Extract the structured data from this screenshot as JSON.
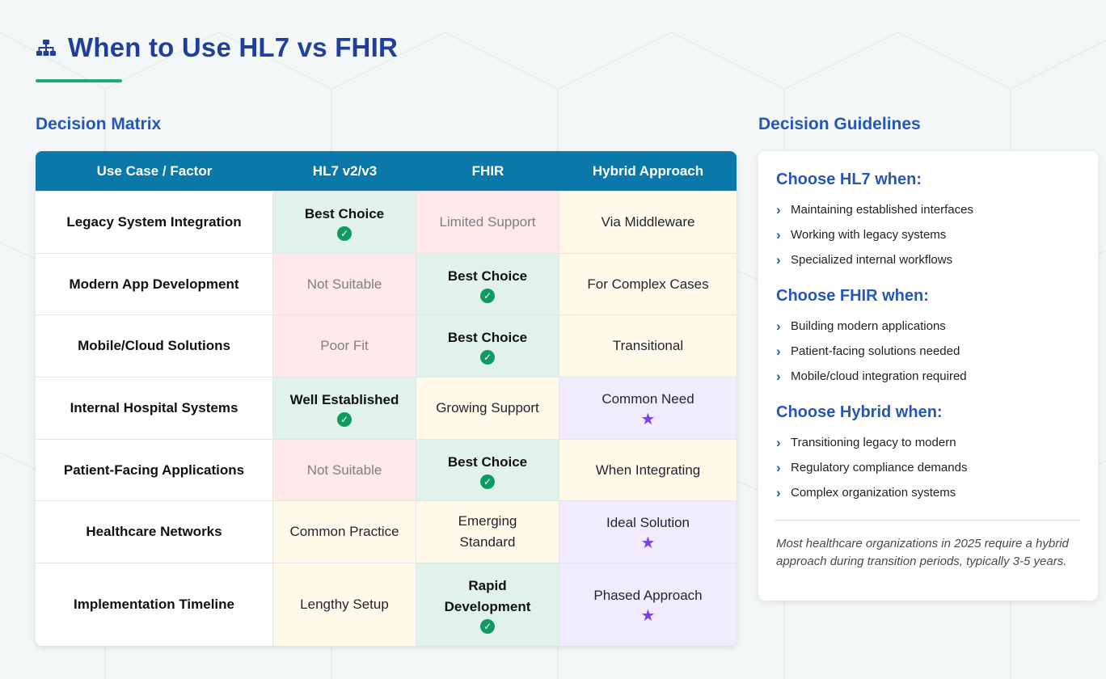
{
  "page": {
    "title": "When to Use HL7 vs FHIR",
    "icon": "sitemap-icon"
  },
  "matrix": {
    "section_title": "Decision Matrix",
    "headers": [
      "Use Case / Factor",
      "HL7 v2/v3",
      "FHIR",
      "Hybrid Approach"
    ],
    "rows": [
      {
        "label": "Legacy System Integration",
        "cells": [
          {
            "text": "Best Choice",
            "style": "green",
            "weight": "bold",
            "icon": "check-circle-icon"
          },
          {
            "text": "Limited Support",
            "style": "red",
            "weight": "muted"
          },
          {
            "text": "Via Middleware",
            "style": "yellow",
            "weight": "normal"
          }
        ]
      },
      {
        "label": "Modern App Development",
        "cells": [
          {
            "text": "Not Suitable",
            "style": "red",
            "weight": "muted"
          },
          {
            "text": "Best Choice",
            "style": "green",
            "weight": "bold",
            "icon": "check-circle-icon"
          },
          {
            "text": "For Complex Cases",
            "style": "yellow",
            "weight": "normal"
          }
        ]
      },
      {
        "label": "Mobile/Cloud Solutions",
        "cells": [
          {
            "text": "Poor Fit",
            "style": "red",
            "weight": "muted"
          },
          {
            "text": "Best Choice",
            "style": "green",
            "weight": "bold",
            "icon": "check-circle-icon"
          },
          {
            "text": "Transitional",
            "style": "yellow",
            "weight": "normal"
          }
        ]
      },
      {
        "label": "Internal Hospital Systems",
        "cells": [
          {
            "text": "Well Established",
            "style": "green",
            "weight": "bold",
            "icon": "check-circle-icon"
          },
          {
            "text": "Growing Support",
            "style": "yellow",
            "weight": "normal"
          },
          {
            "text": "Common Need",
            "style": "purple",
            "weight": "normal",
            "icon": "star-icon"
          }
        ]
      },
      {
        "label": "Patient-Facing Applications",
        "cells": [
          {
            "text": "Not Suitable",
            "style": "red",
            "weight": "muted"
          },
          {
            "text": "Best Choice",
            "style": "green",
            "weight": "bold",
            "icon": "check-circle-icon"
          },
          {
            "text": "When Integrating",
            "style": "yellow",
            "weight": "normal"
          }
        ]
      },
      {
        "label": "Healthcare Networks",
        "cells": [
          {
            "text": "Common Practice",
            "style": "yellow",
            "weight": "normal"
          },
          {
            "text": "Emerging Standard",
            "style": "yellow",
            "weight": "normal"
          },
          {
            "text": "Ideal Solution",
            "style": "purple",
            "weight": "normal",
            "icon": "star-icon"
          }
        ]
      },
      {
        "label": "Implementation Timeline",
        "cells": [
          {
            "text": "Lengthy Setup",
            "style": "yellow",
            "weight": "normal"
          },
          {
            "text": "Rapid Development",
            "style": "green",
            "weight": "bold",
            "icon": "check-circle-icon"
          },
          {
            "text": "Phased Approach",
            "style": "purple",
            "weight": "normal",
            "icon": "star-icon"
          }
        ]
      }
    ]
  },
  "guidelines": {
    "section_title": "Decision Guidelines",
    "groups": [
      {
        "heading": "Choose HL7 when:",
        "items": [
          "Maintaining established interfaces",
          "Working with legacy systems",
          "Specialized internal workflows"
        ]
      },
      {
        "heading": "Choose FHIR when:",
        "items": [
          "Building modern applications",
          "Patient-facing solutions needed",
          "Mobile/cloud integration required"
        ]
      },
      {
        "heading": "Choose Hybrid when:",
        "items": [
          "Transitioning legacy to modern",
          "Regulatory compliance demands",
          "Complex organization systems"
        ]
      }
    ],
    "note": "Most healthcare organizations in 2025 require a hybrid approach during transition periods, typically 3-5 years."
  },
  "colors": {
    "title": "#1f3f9d",
    "accent_line": "#22a877",
    "table_header": "#0a78a8",
    "green_cell": "#e1f2ec",
    "red_cell": "#fde9e9",
    "yellow_cell": "#fef9e9",
    "purple_cell": "#f1ecfd",
    "check": "#0f9a62",
    "star": "#7b3fe4"
  }
}
